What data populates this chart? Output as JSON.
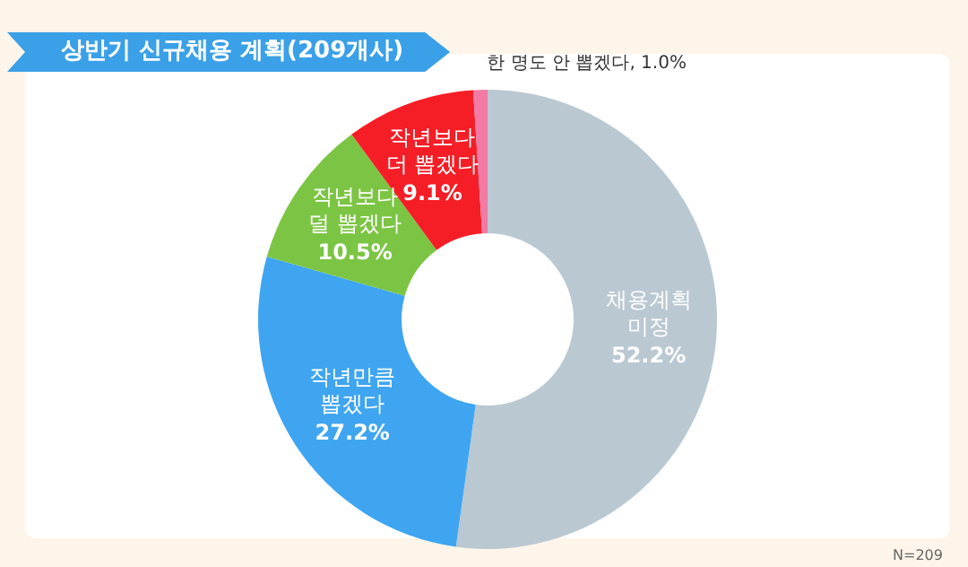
{
  "chart_data": {
    "type": "donut",
    "title": "상반기 신규채용 계획(209개사)",
    "categories": [
      "채용계획 미정",
      "작년만큼 뽑겠다",
      "작년보다 덜 뽑겠다",
      "작년보다 더 뽑겠다",
      "한 명도 안 뽑겠다"
    ],
    "values": [
      52.2,
      27.2,
      10.5,
      9.1,
      1.0
    ],
    "colors": [
      "#bac8d2",
      "#3fa5f0",
      "#7cc544",
      "#f51e26",
      "#f27aa5"
    ],
    "value_labels": [
      "52.2%",
      "27.2%",
      "10.5%",
      "9.1%",
      "1.0%"
    ],
    "annotations": [
      "N=209"
    ]
  }
}
